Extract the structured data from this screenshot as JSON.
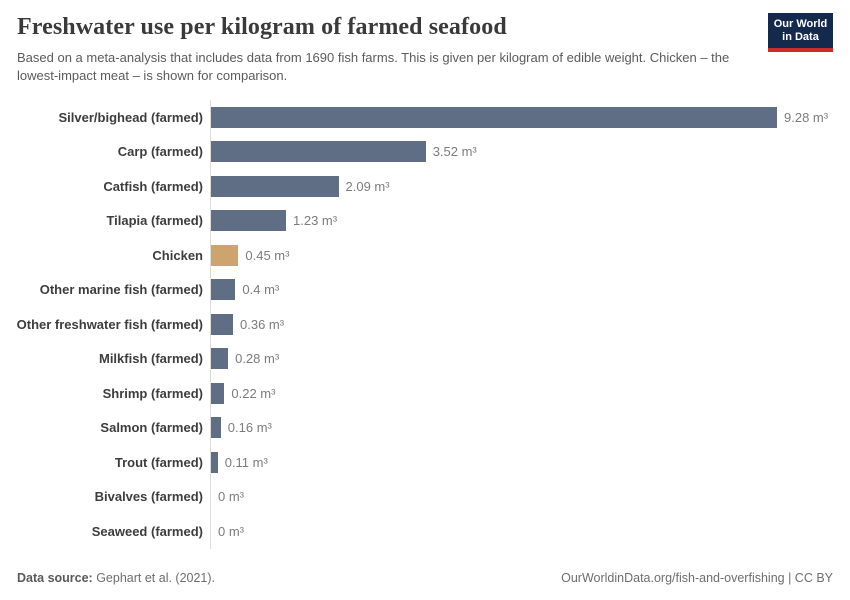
{
  "header": {
    "title": "Freshwater use per kilogram of farmed seafood",
    "subtitle": "Based on a meta-analysis that includes data from 1690 fish farms. This is given per kilogram of edible weight. Chicken – the lowest-impact meat – is shown for comparison.",
    "logo": {
      "line1": "Our World",
      "line2": "in Data",
      "bg_color": "#15294d",
      "accent_color": "#cd2a2e"
    }
  },
  "chart_data": {
    "type": "bar",
    "orientation": "horizontal",
    "title": "Freshwater use per kilogram of farmed seafood",
    "xlabel": "",
    "ylabel": "",
    "unit": "m³",
    "xlim": [
      0,
      9.28
    ],
    "grid": false,
    "legend": "none",
    "categories": [
      "Silver/bighead (farmed)",
      "Carp (farmed)",
      "Catfish (farmed)",
      "Tilapia (farmed)",
      "Chicken",
      "Other marine fish (farmed)",
      "Other freshwater fish (farmed)",
      "Milkfish (farmed)",
      "Shrimp (farmed)",
      "Salmon (farmed)",
      "Trout (farmed)",
      "Bivalves (farmed)",
      "Seaweed (farmed)"
    ],
    "values": [
      9.28,
      3.52,
      2.09,
      1.23,
      0.45,
      0.4,
      0.36,
      0.28,
      0.22,
      0.16,
      0.11,
      0,
      0
    ],
    "value_labels": [
      "9.28 m³",
      "3.52 m³",
      "2.09 m³",
      "1.23 m³",
      "0.45 m³",
      "0.4 m³",
      "0.36 m³",
      "0.28 m³",
      "0.22 m³",
      "0.16 m³",
      "0.11 m³",
      "0 m³",
      "0 m³"
    ],
    "highlight_category": "Chicken",
    "bar_color": "#5f6e84",
    "highlight_color": "#cda46e",
    "axis_line_color": "#dcdcdc"
  },
  "footer": {
    "datasource_label": "Data source:",
    "datasource_value": " Gephart et al. (2021).",
    "right_text": "OurWorldinData.org/fish-and-overfishing | CC BY"
  }
}
